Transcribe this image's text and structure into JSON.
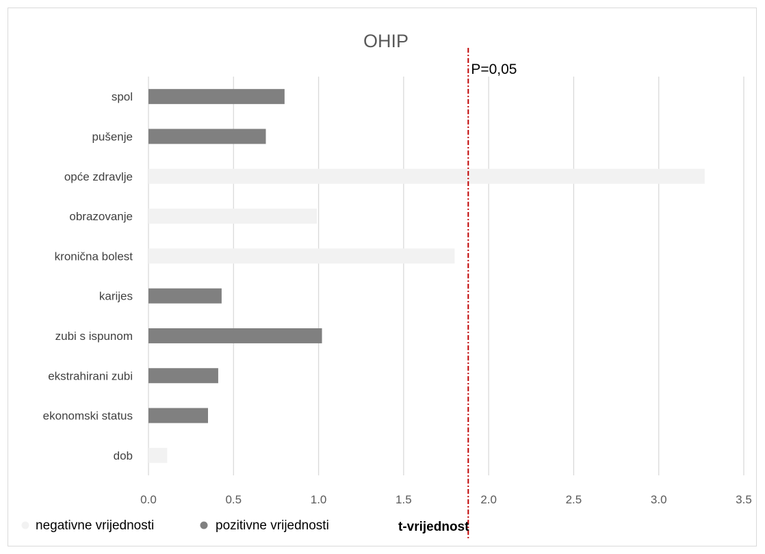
{
  "chart_data": {
    "type": "bar",
    "orientation": "horizontal",
    "title": "OHIP",
    "xlabel": "t-vrijednost",
    "ylabel": "",
    "xlim": [
      0,
      3.5
    ],
    "xticks": [
      "0.0",
      "0.5",
      "1.0",
      "1.5",
      "2.0",
      "2.5",
      "3.0",
      "3.5"
    ],
    "grid": "vertical",
    "legend_position": "bottom-left",
    "categories": [
      "spol",
      "pušenje",
      "opće zdravlje",
      "obrazovanje",
      "kronična bolest",
      "karijes",
      "zubi s ispunom",
      "ekstrahirani zubi",
      "ekonomski status",
      "dob"
    ],
    "values": [
      0.8,
      0.69,
      3.27,
      0.99,
      1.8,
      0.43,
      1.02,
      0.41,
      0.35,
      0.11
    ],
    "sign": [
      "pozitivne",
      "pozitivne",
      "negativne",
      "negativne",
      "negativne",
      "pozitivne",
      "pozitivne",
      "pozitivne",
      "pozitivne",
      "negativne"
    ],
    "series": [
      {
        "name": "negativne vrijednosti",
        "color": "#f2f2f2"
      },
      {
        "name": "pozitivne vrijednosti",
        "color": "#808080"
      }
    ],
    "annotation": {
      "label": "P=0,05",
      "x": 1.88,
      "color": "#c00000",
      "style": "dash-dot"
    }
  }
}
